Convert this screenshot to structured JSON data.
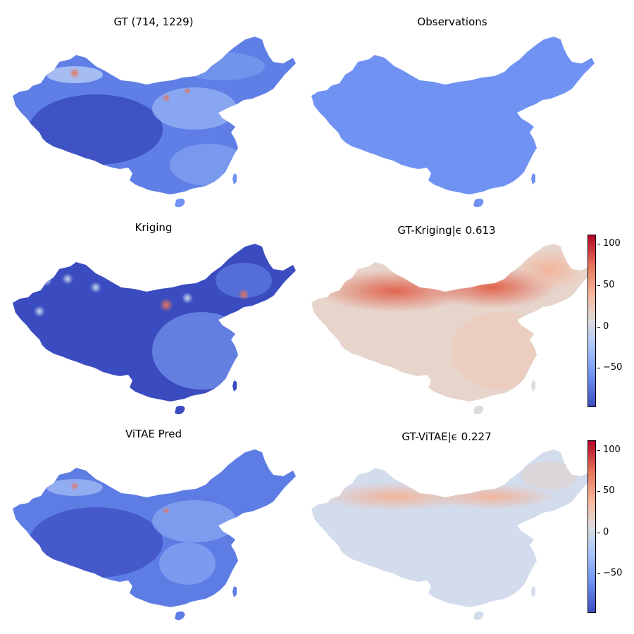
{
  "panels": {
    "gt": {
      "title": "GT (714, 1229)"
    },
    "observations": {
      "title": "Observations"
    },
    "kriging": {
      "title": "Kriging"
    },
    "gt_kriging": {
      "title": "GT-Kriging|ϵ 0.613"
    },
    "vitae_pred": {
      "title": "ViTAE Pred"
    },
    "gt_vitae": {
      "title": "GT-ViTAE|ϵ 0.227"
    }
  },
  "colorbars": {
    "ticks": [
      "100",
      "50",
      "0",
      "−50"
    ]
  },
  "colors": {
    "deep_blue": "#3b4cc0",
    "mid_blue": "#6f92f3",
    "light_blue": "#aac7fd",
    "neutral": "#dddcdc",
    "light_red": "#f7b89c",
    "red": "#e7745b",
    "deep_red": "#b40426"
  }
}
